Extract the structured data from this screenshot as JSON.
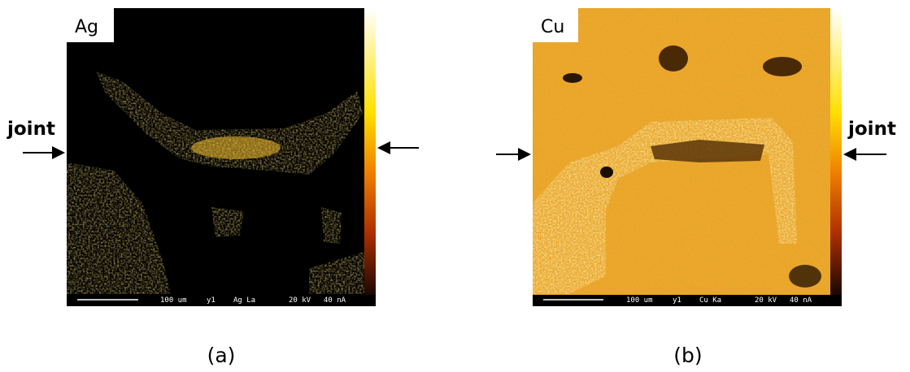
{
  "panels": [
    {
      "element": "Ag",
      "caption": "(a)",
      "annotation": "joint",
      "footer": [
        "100 um",
        "y1",
        "Ag La",
        "20 kV",
        "40 nA"
      ]
    },
    {
      "element": "Cu",
      "caption": "(b)",
      "annotation": "joint",
      "footer": [
        "100 um",
        "y1",
        "Cu Ka",
        "20 kV",
        "40 nA"
      ]
    }
  ]
}
